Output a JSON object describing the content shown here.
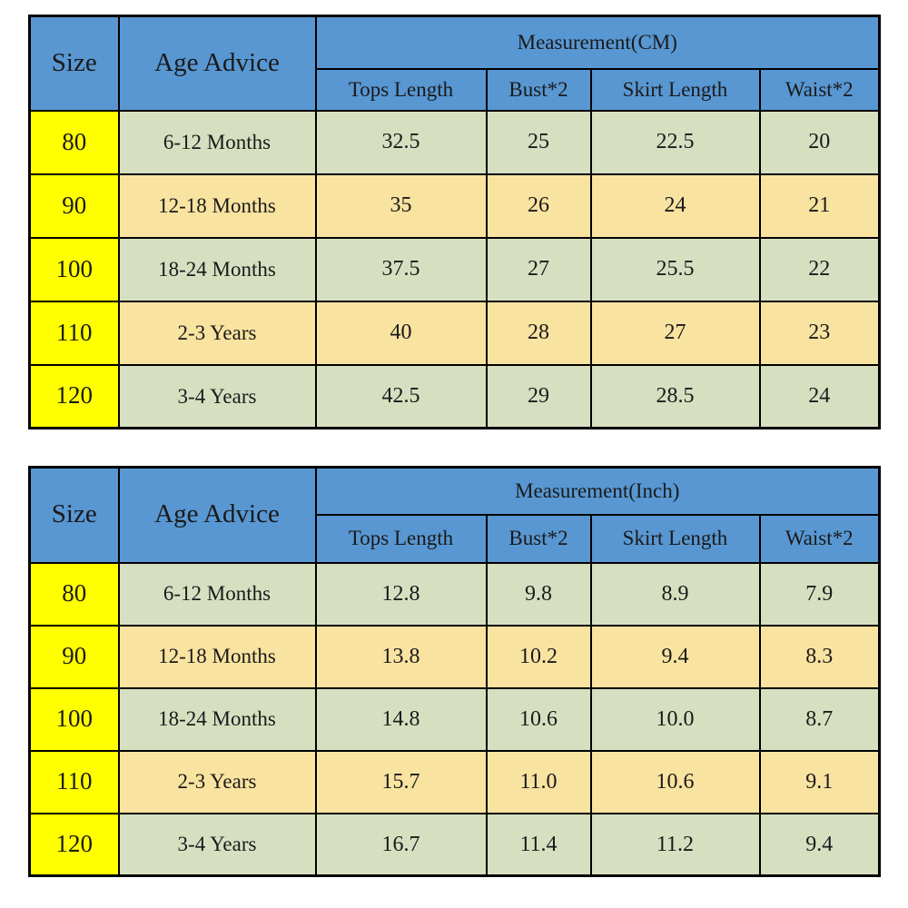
{
  "colors": {
    "header_blue": "#5897D2",
    "size_col_yellow": "#FFFF00",
    "row_green": "#D6E0C1",
    "row_tan": "#F9E3A0",
    "border_black": "#000000",
    "text": "#1a1a1a",
    "background": "#ffffff"
  },
  "columns": {
    "size": "Size",
    "age": "Age Advice",
    "sub": [
      "Tops Length",
      "Bust*2",
      "Skirt Length",
      "Waist*2"
    ]
  },
  "tables": [
    {
      "measurement_label": "Measurement(CM)",
      "rows": [
        {
          "size": "80",
          "age": "6-12 Months",
          "values": [
            "32.5",
            "25",
            "22.5",
            "20"
          ]
        },
        {
          "size": "90",
          "age": "12-18 Months",
          "values": [
            "35",
            "26",
            "24",
            "21"
          ]
        },
        {
          "size": "100",
          "age": "18-24 Months",
          "values": [
            "37.5",
            "27",
            "25.5",
            "22"
          ]
        },
        {
          "size": "110",
          "age": "2-3 Years",
          "values": [
            "40",
            "28",
            "27",
            "23"
          ]
        },
        {
          "size": "120",
          "age": "3-4 Years",
          "values": [
            "42.5",
            "29",
            "28.5",
            "24"
          ]
        }
      ]
    },
    {
      "measurement_label": "Measurement(Inch)",
      "rows": [
        {
          "size": "80",
          "age": "6-12 Months",
          "values": [
            "12.8",
            "9.8",
            "8.9",
            "7.9"
          ]
        },
        {
          "size": "90",
          "age": "12-18 Months",
          "values": [
            "13.8",
            "10.2",
            "9.4",
            "8.3"
          ]
        },
        {
          "size": "100",
          "age": "18-24 Months",
          "values": [
            "14.8",
            "10.6",
            "10.0",
            "8.7"
          ]
        },
        {
          "size": "110",
          "age": "2-3 Years",
          "values": [
            "15.7",
            "11.0",
            "10.6",
            "9.1"
          ]
        },
        {
          "size": "120",
          "age": "3-4 Years",
          "values": [
            "16.7",
            "11.4",
            "11.2",
            "9.4"
          ]
        }
      ]
    }
  ],
  "chart_data": [
    {
      "type": "table",
      "title": "Measurement(CM)",
      "columns": [
        "Size",
        "Age Advice",
        "Tops Length",
        "Bust*2",
        "Skirt Length",
        "Waist*2"
      ],
      "rows": [
        [
          "80",
          "6-12 Months",
          32.5,
          25,
          22.5,
          20
        ],
        [
          "90",
          "12-18 Months",
          35,
          26,
          24,
          21
        ],
        [
          "100",
          "18-24 Months",
          37.5,
          27,
          25.5,
          22
        ],
        [
          "110",
          "2-3 Years",
          40,
          28,
          27,
          23
        ],
        [
          "120",
          "3-4 Years",
          42.5,
          29,
          28.5,
          24
        ]
      ]
    },
    {
      "type": "table",
      "title": "Measurement(Inch)",
      "columns": [
        "Size",
        "Age Advice",
        "Tops Length",
        "Bust*2",
        "Skirt Length",
        "Waist*2"
      ],
      "rows": [
        [
          "80",
          "6-12 Months",
          12.8,
          9.8,
          8.9,
          7.9
        ],
        [
          "90",
          "12-18 Months",
          13.8,
          10.2,
          9.4,
          8.3
        ],
        [
          "100",
          "18-24 Months",
          14.8,
          10.6,
          10.0,
          8.7
        ],
        [
          "110",
          "2-3 Years",
          15.7,
          11.0,
          10.6,
          9.1
        ],
        [
          "120",
          "3-4 Years",
          16.7,
          11.4,
          11.2,
          9.4
        ]
      ]
    }
  ]
}
